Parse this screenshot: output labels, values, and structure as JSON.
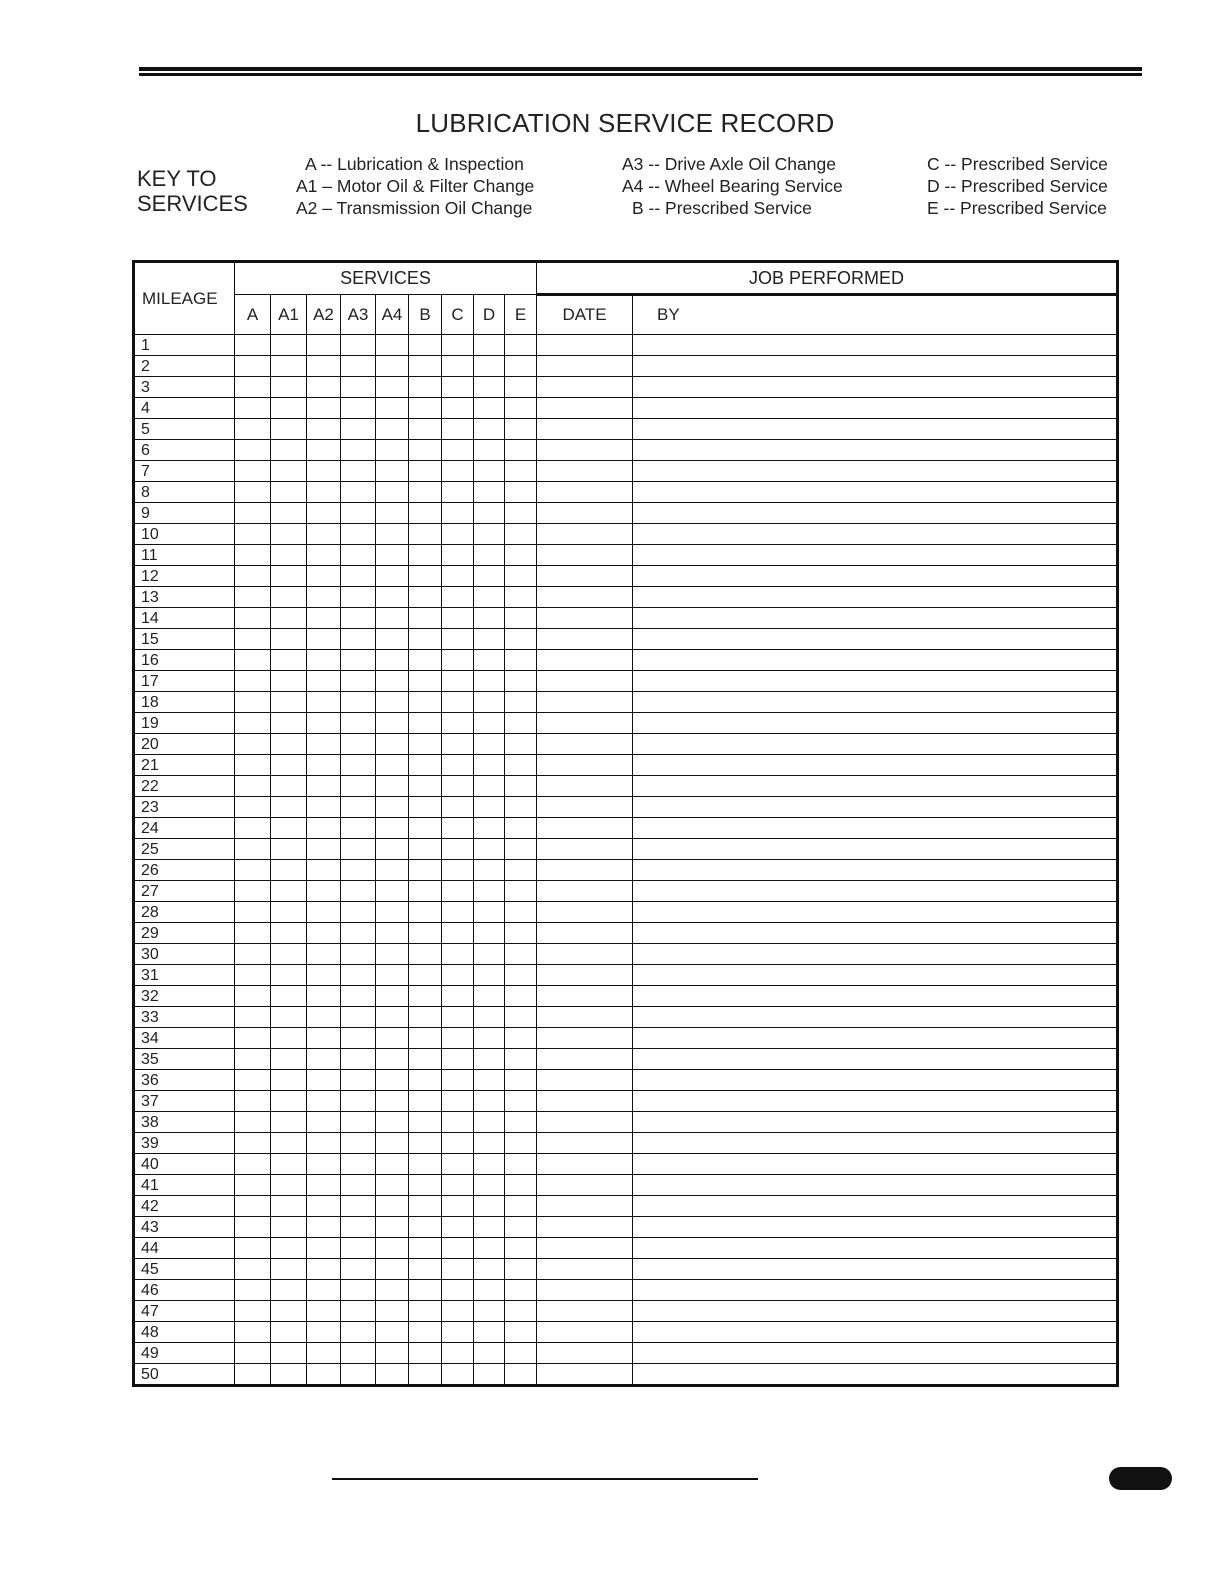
{
  "title": "LUBRICATION SERVICE RECORD",
  "key": {
    "label_line1": "KEY TO",
    "label_line2": "SERVICES",
    "col1": [
      "A -- Lubrication & Inspection",
      "A1 – Motor Oil & Filter Change",
      "A2 – Transmission Oil Change"
    ],
    "col2": [
      "A3 -- Drive Axle Oil Change",
      "A4 -- Wheel Bearing Service",
      "B -- Prescribed Service"
    ],
    "col3": [
      "C -- Prescribed Service",
      "D -- Prescribed Service",
      "E -- Prescribed Service"
    ]
  },
  "table": {
    "mileage_header": "MILEAGE",
    "services_header": "SERVICES",
    "job_header": "JOB  PERFORMED",
    "service_columns": [
      "A",
      "A1",
      "A2",
      "A3",
      "A4",
      "B",
      "C",
      "D",
      "E"
    ],
    "date_header": "DATE",
    "by_header": "BY",
    "rows": [
      "1",
      "2",
      "3",
      "4",
      "5",
      "6",
      "7",
      "8",
      "9",
      "10",
      "11",
      "12",
      "13",
      "14",
      "15",
      "16",
      "17",
      "18",
      "19",
      "20",
      "21",
      "22",
      "23",
      "24",
      "25",
      "26",
      "27",
      "28",
      "29",
      "30",
      "31",
      "32",
      "33",
      "34",
      "35",
      "36",
      "37",
      "38",
      "39",
      "40",
      "41",
      "42",
      "43",
      "44",
      "45",
      "46",
      "47",
      "48",
      "49",
      "50"
    ]
  }
}
